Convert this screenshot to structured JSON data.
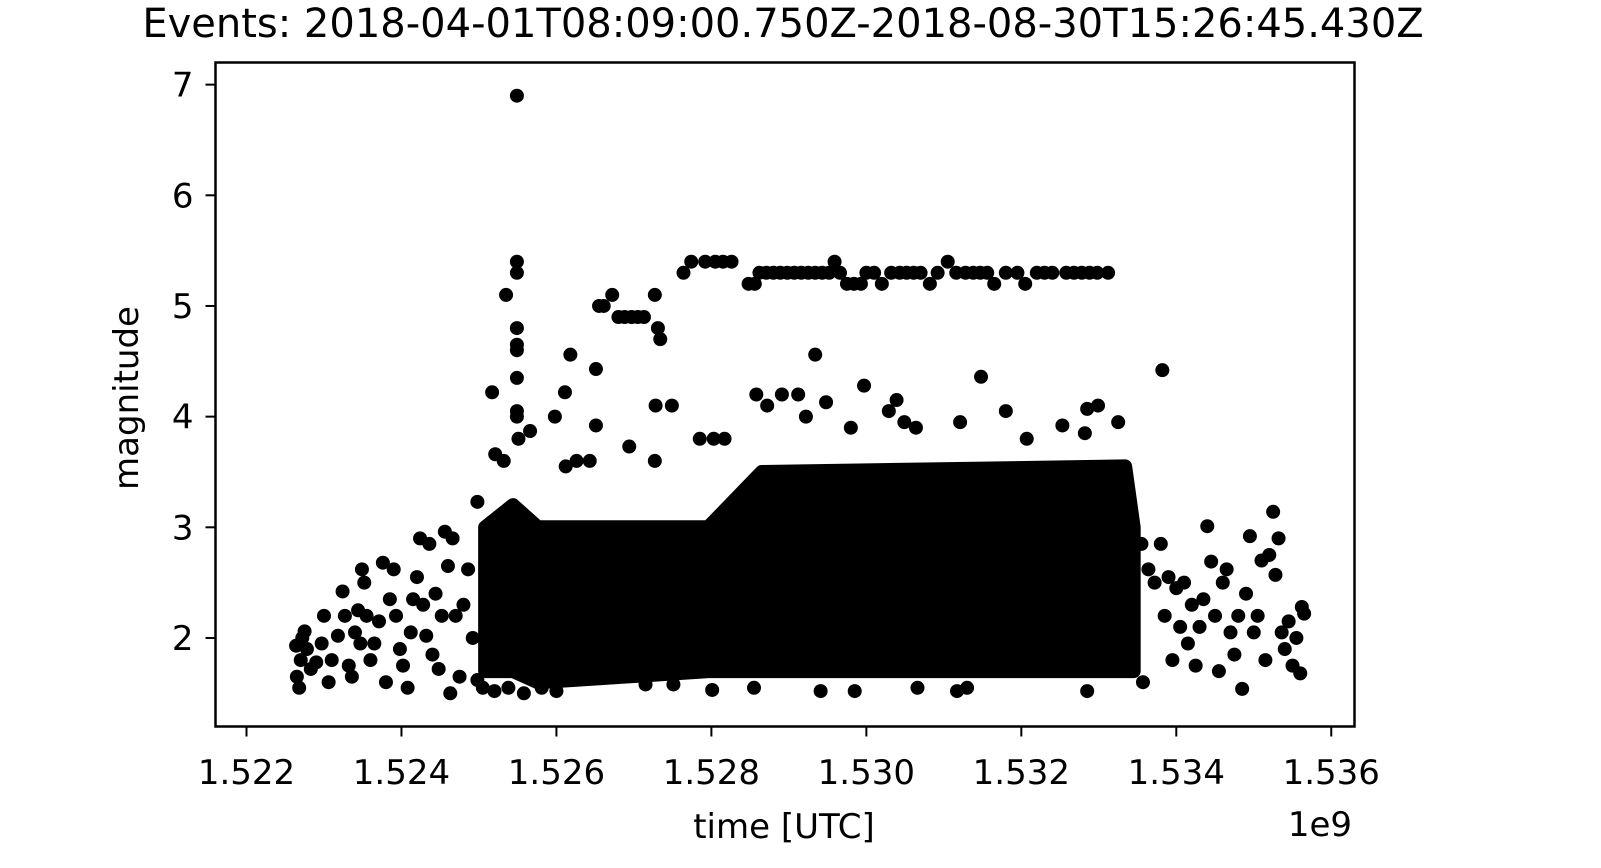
{
  "chart_data": {
    "type": "scatter",
    "title": "Events: 2018-04-01T08:09:00.750Z-2018-08-30T15:26:45.430Z",
    "xlabel": "time [UTC]",
    "ylabel": "magnitude",
    "x_offset_label": "1e9",
    "x_unit_multiplier": 1000000000,
    "xlim": [
      1.5216,
      1.5363
    ],
    "ylim": [
      1.2,
      7.2
    ],
    "x_ticks": [
      1.522,
      1.524,
      1.526,
      1.528,
      1.53,
      1.532,
      1.534,
      1.536
    ],
    "x_tick_labels": [
      "1.522",
      "1.524",
      "1.526",
      "1.528",
      "1.530",
      "1.532",
      "1.534",
      "1.536"
    ],
    "y_ticks": [
      2,
      3,
      4,
      5,
      6,
      7
    ],
    "y_tick_labels": [
      "2",
      "3",
      "4",
      "5",
      "6",
      "7"
    ],
    "grid": false,
    "marker_color": "#000000",
    "dense_region": {
      "x": [
        1.52508,
        1.52544,
        1.52576,
        1.52796,
        1.52865,
        1.53334,
        1.53345
      ],
      "y_bottom": [
        1.7,
        1.7,
        1.6,
        1.7,
        1.7,
        1.7,
        1.7
      ],
      "y_top": [
        3.0,
        3.2,
        3.0,
        3.0,
        3.5,
        3.55,
        3.0
      ]
    },
    "points": [
      {
        "x": 1.52549,
        "y": 6.9
      },
      {
        "x": 1.52549,
        "y": 5.4
      },
      {
        "x": 1.52549,
        "y": 5.3
      },
      {
        "x": 1.52535,
        "y": 5.1
      },
      {
        "x": 1.52549,
        "y": 4.8
      },
      {
        "x": 1.52549,
        "y": 4.65
      },
      {
        "x": 1.52549,
        "y": 4.6
      },
      {
        "x": 1.52549,
        "y": 4.35
      },
      {
        "x": 1.52549,
        "y": 4.05
      },
      {
        "x": 1.52549,
        "y": 4.0
      },
      {
        "x": 1.52517,
        "y": 4.22
      },
      {
        "x": 1.52551,
        "y": 3.8
      },
      {
        "x": 1.52566,
        "y": 3.87
      },
      {
        "x": 1.52521,
        "y": 3.66
      },
      {
        "x": 1.52498,
        "y": 3.23
      },
      {
        "x": 1.52532,
        "y": 3.6
      },
      {
        "x": 1.52618,
        "y": 4.56
      },
      {
        "x": 1.52611,
        "y": 4.22
      },
      {
        "x": 1.52598,
        "y": 4.0
      },
      {
        "x": 1.52651,
        "y": 4.43
      },
      {
        "x": 1.52651,
        "y": 3.92
      },
      {
        "x": 1.52626,
        "y": 3.6
      },
      {
        "x": 1.52643,
        "y": 3.6
      },
      {
        "x": 1.52612,
        "y": 3.55
      },
      {
        "x": 1.52655,
        "y": 5.0
      },
      {
        "x": 1.52661,
        "y": 5.0
      },
      {
        "x": 1.52672,
        "y": 5.1
      },
      {
        "x": 1.5268,
        "y": 4.9
      },
      {
        "x": 1.52688,
        "y": 4.9
      },
      {
        "x": 1.52697,
        "y": 4.9
      },
      {
        "x": 1.52705,
        "y": 4.9
      },
      {
        "x": 1.52713,
        "y": 4.9
      },
      {
        "x": 1.52727,
        "y": 5.1
      },
      {
        "x": 1.52731,
        "y": 4.8
      },
      {
        "x": 1.52734,
        "y": 4.7
      },
      {
        "x": 1.52728,
        "y": 4.1
      },
      {
        "x": 1.52749,
        "y": 4.1
      },
      {
        "x": 1.52694,
        "y": 3.73
      },
      {
        "x": 1.52727,
        "y": 3.6
      },
      {
        "x": 1.52764,
        "y": 5.3
      },
      {
        "x": 1.52774,
        "y": 5.4
      },
      {
        "x": 1.52792,
        "y": 5.4
      },
      {
        "x": 1.52805,
        "y": 5.4
      },
      {
        "x": 1.52815,
        "y": 5.4
      },
      {
        "x": 1.52826,
        "y": 5.4
      },
      {
        "x": 1.52785,
        "y": 3.8
      },
      {
        "x": 1.52803,
        "y": 3.8
      },
      {
        "x": 1.52817,
        "y": 3.8
      },
      {
        "x": 1.52848,
        "y": 5.2
      },
      {
        "x": 1.52856,
        "y": 5.2
      },
      {
        "x": 1.52862,
        "y": 5.3
      },
      {
        "x": 1.52871,
        "y": 5.3
      },
      {
        "x": 1.5288,
        "y": 5.3
      },
      {
        "x": 1.52889,
        "y": 5.3
      },
      {
        "x": 1.52898,
        "y": 5.3
      },
      {
        "x": 1.52907,
        "y": 5.3
      },
      {
        "x": 1.52916,
        "y": 5.3
      },
      {
        "x": 1.52925,
        "y": 5.3
      },
      {
        "x": 1.52934,
        "y": 5.3
      },
      {
        "x": 1.52943,
        "y": 5.3
      },
      {
        "x": 1.52952,
        "y": 5.3
      },
      {
        "x": 1.52959,
        "y": 5.4
      },
      {
        "x": 1.52966,
        "y": 5.3
      },
      {
        "x": 1.52975,
        "y": 5.2
      },
      {
        "x": 1.52984,
        "y": 5.2
      },
      {
        "x": 1.52993,
        "y": 5.2
      },
      {
        "x": 1.53,
        "y": 5.3
      },
      {
        "x": 1.5301,
        "y": 5.3
      },
      {
        "x": 1.5302,
        "y": 5.2
      },
      {
        "x": 1.53032,
        "y": 5.3
      },
      {
        "x": 1.53043,
        "y": 5.3
      },
      {
        "x": 1.53052,
        "y": 5.3
      },
      {
        "x": 1.53061,
        "y": 5.3
      },
      {
        "x": 1.5307,
        "y": 5.3
      },
      {
        "x": 1.53082,
        "y": 5.2
      },
      {
        "x": 1.53092,
        "y": 5.3
      },
      {
        "x": 1.53105,
        "y": 5.4
      },
      {
        "x": 1.53116,
        "y": 5.3
      },
      {
        "x": 1.53128,
        "y": 5.3
      },
      {
        "x": 1.53138,
        "y": 5.3
      },
      {
        "x": 1.53147,
        "y": 5.3
      },
      {
        "x": 1.53156,
        "y": 5.3
      },
      {
        "x": 1.53165,
        "y": 5.2
      },
      {
        "x": 1.5318,
        "y": 5.3
      },
      {
        "x": 1.53195,
        "y": 5.3
      },
      {
        "x": 1.53205,
        "y": 5.2
      },
      {
        "x": 1.5322,
        "y": 5.3
      },
      {
        "x": 1.5323,
        "y": 5.3
      },
      {
        "x": 1.5324,
        "y": 5.3
      },
      {
        "x": 1.53258,
        "y": 5.3
      },
      {
        "x": 1.53268,
        "y": 5.3
      },
      {
        "x": 1.53278,
        "y": 5.3
      },
      {
        "x": 1.53288,
        "y": 5.3
      },
      {
        "x": 1.53298,
        "y": 5.3
      },
      {
        "x": 1.53312,
        "y": 5.3
      },
      {
        "x": 1.52858,
        "y": 4.2
      },
      {
        "x": 1.52872,
        "y": 4.1
      },
      {
        "x": 1.52891,
        "y": 4.2
      },
      {
        "x": 1.52912,
        "y": 4.2
      },
      {
        "x": 1.52922,
        "y": 4.0
      },
      {
        "x": 1.52934,
        "y": 4.56
      },
      {
        "x": 1.52948,
        "y": 4.13
      },
      {
        "x": 1.52997,
        "y": 4.28
      },
      {
        "x": 1.53039,
        "y": 4.15
      },
      {
        "x": 1.53029,
        "y": 4.05
      },
      {
        "x": 1.53049,
        "y": 3.95
      },
      {
        "x": 1.53064,
        "y": 3.9
      },
      {
        "x": 1.53121,
        "y": 3.95
      },
      {
        "x": 1.53148,
        "y": 4.36
      },
      {
        "x": 1.5318,
        "y": 4.05
      },
      {
        "x": 1.53207,
        "y": 3.8
      },
      {
        "x": 1.53253,
        "y": 3.92
      },
      {
        "x": 1.53285,
        "y": 4.07
      },
      {
        "x": 1.53299,
        "y": 4.1
      },
      {
        "x": 1.53325,
        "y": 3.95
      },
      {
        "x": 1.53382,
        "y": 4.42
      },
      {
        "x": 1.53282,
        "y": 3.85
      },
      {
        "x": 1.5298,
        "y": 3.9
      },
      {
        "x": 1.52264,
        "y": 1.93
      },
      {
        "x": 1.52265,
        "y": 1.65
      },
      {
        "x": 1.52268,
        "y": 1.55
      },
      {
        "x": 1.5227,
        "y": 1.8
      },
      {
        "x": 1.52272,
        "y": 2.0
      },
      {
        "x": 1.52275,
        "y": 2.06
      },
      {
        "x": 1.52278,
        "y": 1.9
      },
      {
        "x": 1.52283,
        "y": 1.72
      },
      {
        "x": 1.5229,
        "y": 1.78
      },
      {
        "x": 1.52297,
        "y": 1.95
      },
      {
        "x": 1.523,
        "y": 2.2
      },
      {
        "x": 1.52306,
        "y": 1.6
      },
      {
        "x": 1.5231,
        "y": 1.8
      },
      {
        "x": 1.52318,
        "y": 2.02
      },
      {
        "x": 1.52324,
        "y": 2.42
      },
      {
        "x": 1.52327,
        "y": 2.2
      },
      {
        "x": 1.52332,
        "y": 1.75
      },
      {
        "x": 1.52336,
        "y": 1.65
      },
      {
        "x": 1.5234,
        "y": 2.05
      },
      {
        "x": 1.52344,
        "y": 2.25
      },
      {
        "x": 1.52347,
        "y": 1.95
      },
      {
        "x": 1.52349,
        "y": 2.62
      },
      {
        "x": 1.52352,
        "y": 2.5
      },
      {
        "x": 1.52355,
        "y": 2.2
      },
      {
        "x": 1.5236,
        "y": 1.8
      },
      {
        "x": 1.52365,
        "y": 1.95
      },
      {
        "x": 1.52371,
        "y": 2.15
      },
      {
        "x": 1.52376,
        "y": 2.68
      },
      {
        "x": 1.5238,
        "y": 1.6
      },
      {
        "x": 1.52385,
        "y": 2.35
      },
      {
        "x": 1.5239,
        "y": 2.62
      },
      {
        "x": 1.52393,
        "y": 2.2
      },
      {
        "x": 1.52398,
        "y": 1.9
      },
      {
        "x": 1.52402,
        "y": 1.75
      },
      {
        "x": 1.52408,
        "y": 1.55
      },
      {
        "x": 1.52412,
        "y": 2.05
      },
      {
        "x": 1.52415,
        "y": 2.35
      },
      {
        "x": 1.5242,
        "y": 2.55
      },
      {
        "x": 1.52424,
        "y": 2.9
      },
      {
        "x": 1.52428,
        "y": 2.3
      },
      {
        "x": 1.52432,
        "y": 2.02
      },
      {
        "x": 1.52436,
        "y": 2.85
      },
      {
        "x": 1.5244,
        "y": 1.85
      },
      {
        "x": 1.52444,
        "y": 2.4
      },
      {
        "x": 1.52448,
        "y": 1.72
      },
      {
        "x": 1.52452,
        "y": 2.2
      },
      {
        "x": 1.52456,
        "y": 2.96
      },
      {
        "x": 1.5246,
        "y": 2.65
      },
      {
        "x": 1.52463,
        "y": 1.5
      },
      {
        "x": 1.52466,
        "y": 2.9
      },
      {
        "x": 1.5247,
        "y": 2.2
      },
      {
        "x": 1.52475,
        "y": 1.65
      },
      {
        "x": 1.5248,
        "y": 2.3
      },
      {
        "x": 1.52486,
        "y": 2.62
      },
      {
        "x": 1.52492,
        "y": 2.0
      },
      {
        "x": 1.52498,
        "y": 1.62
      },
      {
        "x": 1.52505,
        "y": 1.55
      },
      {
        "x": 1.5252,
        "y": 1.52
      },
      {
        "x": 1.52538,
        "y": 1.55
      },
      {
        "x": 1.52558,
        "y": 1.5
      },
      {
        "x": 1.52581,
        "y": 1.55
      },
      {
        "x": 1.526,
        "y": 1.52
      },
      {
        "x": 1.52715,
        "y": 1.58
      },
      {
        "x": 1.52751,
        "y": 1.58
      },
      {
        "x": 1.52801,
        "y": 1.53
      },
      {
        "x": 1.52855,
        "y": 1.55
      },
      {
        "x": 1.52941,
        "y": 1.52
      },
      {
        "x": 1.52985,
        "y": 1.52
      },
      {
        "x": 1.53066,
        "y": 1.55
      },
      {
        "x": 1.53117,
        "y": 1.52
      },
      {
        "x": 1.5313,
        "y": 1.55
      },
      {
        "x": 1.53285,
        "y": 1.52
      },
      {
        "x": 1.53357,
        "y": 1.6
      },
      {
        "x": 1.53355,
        "y": 2.85
      },
      {
        "x": 1.53364,
        "y": 2.62
      },
      {
        "x": 1.53372,
        "y": 2.5
      },
      {
        "x": 1.5338,
        "y": 2.85
      },
      {
        "x": 1.53385,
        "y": 2.2
      },
      {
        "x": 1.5339,
        "y": 2.55
      },
      {
        "x": 1.53395,
        "y": 1.8
      },
      {
        "x": 1.534,
        "y": 2.45
      },
      {
        "x": 1.53405,
        "y": 2.1
      },
      {
        "x": 1.5341,
        "y": 2.5
      },
      {
        "x": 1.53415,
        "y": 1.95
      },
      {
        "x": 1.5342,
        "y": 2.3
      },
      {
        "x": 1.53425,
        "y": 1.75
      },
      {
        "x": 1.5343,
        "y": 2.1
      },
      {
        "x": 1.53435,
        "y": 2.35
      },
      {
        "x": 1.5344,
        "y": 3.01
      },
      {
        "x": 1.53445,
        "y": 2.69
      },
      {
        "x": 1.5345,
        "y": 2.2
      },
      {
        "x": 1.53455,
        "y": 1.7
      },
      {
        "x": 1.5346,
        "y": 2.5
      },
      {
        "x": 1.53465,
        "y": 2.62
      },
      {
        "x": 1.5347,
        "y": 2.05
      },
      {
        "x": 1.53475,
        "y": 1.85
      },
      {
        "x": 1.5348,
        "y": 2.2
      },
      {
        "x": 1.53485,
        "y": 1.54
      },
      {
        "x": 1.5349,
        "y": 2.4
      },
      {
        "x": 1.53495,
        "y": 2.92
      },
      {
        "x": 1.535,
        "y": 2.05
      },
      {
        "x": 1.53505,
        "y": 2.2
      },
      {
        "x": 1.5351,
        "y": 2.7
      },
      {
        "x": 1.53515,
        "y": 1.8
      },
      {
        "x": 1.5352,
        "y": 2.75
      },
      {
        "x": 1.53525,
        "y": 3.14
      },
      {
        "x": 1.53528,
        "y": 2.57
      },
      {
        "x": 1.53532,
        "y": 2.9
      },
      {
        "x": 1.53536,
        "y": 2.05
      },
      {
        "x": 1.5354,
        "y": 1.9
      },
      {
        "x": 1.53545,
        "y": 2.15
      },
      {
        "x": 1.5355,
        "y": 1.75
      },
      {
        "x": 1.53555,
        "y": 2.0
      },
      {
        "x": 1.5356,
        "y": 1.68
      },
      {
        "x": 1.53562,
        "y": 2.28
      },
      {
        "x": 1.53565,
        "y": 2.22
      }
    ]
  }
}
